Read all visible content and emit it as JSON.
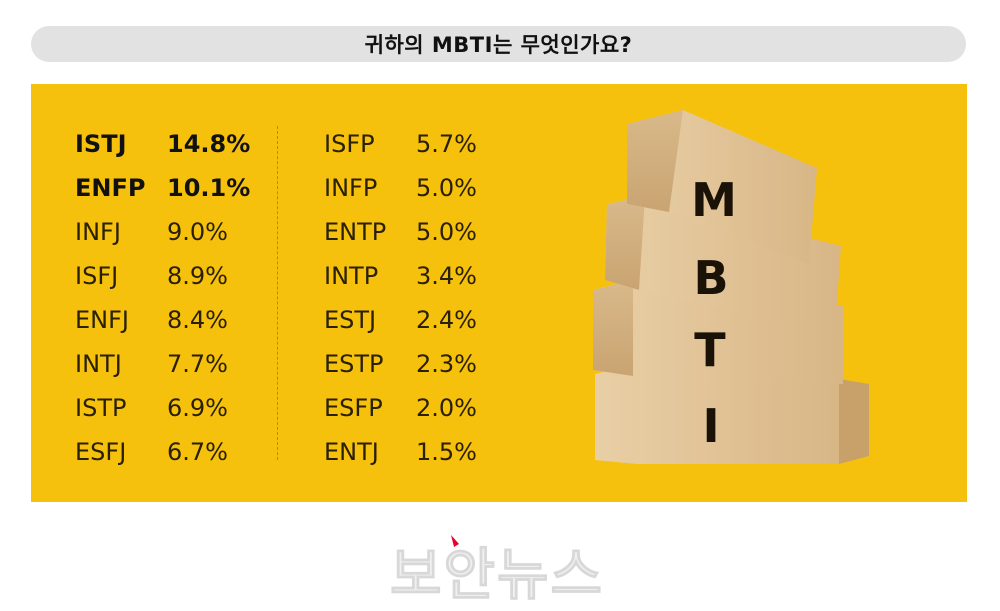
{
  "title": "귀하의 MBTI는 무엇인가요?",
  "chart_data": {
    "type": "table",
    "columns": [
      [
        {
          "type": "ISTJ",
          "value": "14.8%",
          "highlight": true
        },
        {
          "type": "ENFP",
          "value": "10.1%",
          "highlight": true
        },
        {
          "type": "INFJ",
          "value": "9.0%",
          "highlight": false
        },
        {
          "type": "ISFJ",
          "value": "8.9%",
          "highlight": false
        },
        {
          "type": "ENFJ",
          "value": "8.4%",
          "highlight": false
        },
        {
          "type": "INTJ",
          "value": "7.7%",
          "highlight": false
        },
        {
          "type": "ISTP",
          "value": "6.9%",
          "highlight": false
        },
        {
          "type": "ESFJ",
          "value": "6.7%",
          "highlight": false
        }
      ],
      [
        {
          "type": "ISFP",
          "value": "5.7%",
          "highlight": false
        },
        {
          "type": "INFP",
          "value": "5.0%",
          "highlight": false
        },
        {
          "type": "ENTP",
          "value": "5.0%",
          "highlight": false
        },
        {
          "type": "INTP",
          "value": "3.4%",
          "highlight": false
        },
        {
          "type": "ESTJ",
          "value": "2.4%",
          "highlight": false
        },
        {
          "type": "ESTP",
          "value": "2.3%",
          "highlight": false
        },
        {
          "type": "ESFP",
          "value": "2.0%",
          "highlight": false
        },
        {
          "type": "ENTJ",
          "value": "1.5%",
          "highlight": false
        }
      ]
    ]
  },
  "image": {
    "block_letters": [
      "M",
      "B",
      "T",
      "I"
    ]
  },
  "logo": {
    "text": "보안뉴스"
  },
  "colors": {
    "panel": "#f6c10c",
    "title_bar": "#e2e2e2",
    "wood": "#e6c9a0",
    "logo_accent": "#e8002d"
  }
}
